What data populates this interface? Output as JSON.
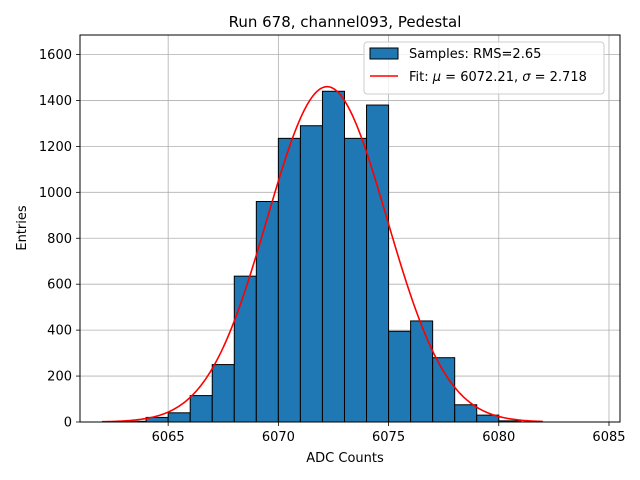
{
  "chart_data": {
    "type": "bar",
    "title": "Run 678, channel093, Pedestal",
    "xlabel": "ADC Counts",
    "ylabel": "Entries",
    "xlim": [
      6061,
      6085.5
    ],
    "ylim": [
      0,
      1685
    ],
    "xticks": [
      6065,
      6070,
      6075,
      6080,
      6085
    ],
    "yticks": [
      0,
      200,
      400,
      600,
      800,
      1000,
      1200,
      1400,
      1600
    ],
    "grid": true,
    "legend_position": "top-right",
    "bar_color": "#1f77b4",
    "fit_color": "#ff0000",
    "bins": [
      {
        "x0": 6063,
        "x1": 6064,
        "value": 3
      },
      {
        "x0": 6064,
        "x1": 6065,
        "value": 20
      },
      {
        "x0": 6065,
        "x1": 6066,
        "value": 40
      },
      {
        "x0": 6066,
        "x1": 6067,
        "value": 115
      },
      {
        "x0": 6067,
        "x1": 6068,
        "value": 250
      },
      {
        "x0": 6068,
        "x1": 6069,
        "value": 635
      },
      {
        "x0": 6069,
        "x1": 6070,
        "value": 960
      },
      {
        "x0": 6070,
        "x1": 6071,
        "value": 1235
      },
      {
        "x0": 6071,
        "x1": 6072,
        "value": 1290
      },
      {
        "x0": 6072,
        "x1": 6073,
        "value": 1440
      },
      {
        "x0": 6073,
        "x1": 6074,
        "value": 1235
      },
      {
        "x0": 6074,
        "x1": 6075,
        "value": 1380
      },
      {
        "x0": 6075,
        "x1": 6076,
        "value": 395
      },
      {
        "x0": 6076,
        "x1": 6077,
        "value": 440
      },
      {
        "x0": 6077,
        "x1": 6078,
        "value": 280
      },
      {
        "x0": 6078,
        "x1": 6079,
        "value": 75
      },
      {
        "x0": 6079,
        "x1": 6080,
        "value": 30
      },
      {
        "x0": 6080,
        "x1": 6081,
        "value": 5
      }
    ],
    "fit": {
      "amplitude": 1460,
      "mu": 6072.21,
      "sigma": 2.718,
      "x_range": [
        6062,
        6082
      ]
    },
    "legend": {
      "samples_label": "Samples: RMS=2.65",
      "fit_label_prefix": "Fit: ",
      "fit_mu_symbol": "μ",
      "fit_mu_value": " = 6072.21, ",
      "fit_sigma_symbol": "σ",
      "fit_sigma_value": " = 2.718"
    }
  }
}
